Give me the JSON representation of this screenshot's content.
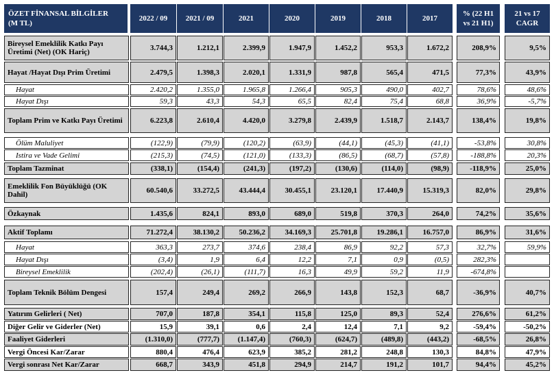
{
  "header": {
    "label_line1": "ÖZET FİNANSAL BİLGİLER",
    "label_line2": "(M TL)",
    "years": [
      "2022 / 09",
      "2021 / 09",
      "2021",
      "2020",
      "2019",
      "2018",
      "2017"
    ],
    "pct_line1": "% (22 H1",
    "pct_line2": "vs 21 H1)",
    "cagr_line1": "21 vs 17",
    "cagr_line2": "CAGR"
  },
  "rows": [
    {
      "label": "Bireysel Emeklilik Katkı Payı Üretimi (Net) (OK Hariç)",
      "values": [
        "3.744,3",
        "1.212,1",
        "2.399,9",
        "1.947,9",
        "1.452,2",
        "953,3",
        "1.672,2"
      ],
      "pct": "208,9%",
      "cagr": "9,5%"
    },
    {
      "label": "Hayat /Hayat Dışı Prim Üretimi",
      "values": [
        "2.479,5",
        "1.398,3",
        "2.020,1",
        "1.331,9",
        "987,8",
        "565,4",
        "471,5"
      ],
      "pct": "77,3%",
      "cagr": "43,9%"
    },
    {
      "label": "Hayat",
      "values": [
        "2.420,2",
        "1.355,0",
        "1.965,8",
        "1.266,4",
        "905,3",
        "490,0",
        "402,7"
      ],
      "pct": "78,6%",
      "cagr": "48,6%"
    },
    {
      "label": "Hayat Dışı",
      "values": [
        "59,3",
        "43,3",
        "54,3",
        "65,5",
        "82,4",
        "75,4",
        "68,8"
      ],
      "pct": "36,9%",
      "cagr": "-5,7%"
    },
    {
      "label": "Toplam Prim ve Katkı Payı Üretimi",
      "values": [
        "6.223,8",
        "2.610,4",
        "4.420,0",
        "3.279,8",
        "2.439,9",
        "1.518,7",
        "2.143,7"
      ],
      "pct": "138,4%",
      "cagr": "19,8%"
    },
    {
      "label": "Ölüm Maluliyet",
      "values": [
        "(122,9)",
        "(79,9)",
        "(120,2)",
        "(63,9)",
        "(44,1)",
        "(45,3)",
        "(41,1)"
      ],
      "pct": "-53,8%",
      "cagr": "30,8%"
    },
    {
      "label": "Istira ve  Vade Gelimi",
      "values": [
        "(215,3)",
        "(74,5)",
        "(121,0)",
        "(133,3)",
        "(86,5)",
        "(68,7)",
        "(57,8)"
      ],
      "pct": "-188,8%",
      "cagr": "20,3%"
    },
    {
      "label": "Toplam Tazminat",
      "values": [
        "(338,1)",
        "(154,4)",
        "(241,3)",
        "(197,2)",
        "(130,6)",
        "(114,0)",
        "(98,9)"
      ],
      "pct": "-118,9%",
      "cagr": "25,0%"
    },
    {
      "label": "Emeklilik Fon Büyüklüğü (OK Dahil)",
      "values": [
        "60.540,6",
        "33.272,5",
        "43.444,4",
        "30.455,1",
        "23.120,1",
        "17.440,9",
        "15.319,3"
      ],
      "pct": "82,0%",
      "cagr": "29,8%"
    },
    {
      "label": "Özkaynak",
      "values": [
        "1.435,6",
        "824,1",
        "893,0",
        "689,0",
        "519,8",
        "370,3",
        "264,0"
      ],
      "pct": "74,2%",
      "cagr": "35,6%"
    },
    {
      "label": "Aktif  Toplamı",
      "values": [
        "71.272,4",
        "38.130,2",
        "50.236,2",
        "34.169,3",
        "25.701,8",
        "19.286,1",
        "16.757,0"
      ],
      "pct": "86,9%",
      "cagr": "31,6%"
    },
    {
      "label": "Hayat",
      "values": [
        "363,3",
        "273,7",
        "374,6",
        "238,4",
        "86,9",
        "92,2",
        "57,3"
      ],
      "pct": "32,7%",
      "cagr": "59,9%"
    },
    {
      "label": "Hayat Dışı",
      "values": [
        "(3,4)",
        "1,9",
        "6,4",
        "12,2",
        "7,1",
        "0,9",
        "(0,5)"
      ],
      "pct": "282,3%",
      "cagr": ""
    },
    {
      "label": "Bireysel Emeklilik",
      "values": [
        "(202,4)",
        "(26,1)",
        "(111,7)",
        "16,3",
        "49,9",
        "59,2",
        "11,9"
      ],
      "pct": "-674,8%",
      "cagr": ""
    },
    {
      "label": "Toplam Teknik Bölüm Dengesi",
      "values": [
        "157,4",
        "249,4",
        "269,2",
        "266,9",
        "143,8",
        "152,3",
        "68,7"
      ],
      "pct": "-36,9%",
      "cagr": "40,7%"
    },
    {
      "label": "Yatırım Gelirleri ( Net)",
      "values": [
        "707,0",
        "187,8",
        "354,1",
        "115,8",
        "125,0",
        "89,3",
        "52,4"
      ],
      "pct": "276,6%",
      "cagr": "61,2%"
    },
    {
      "label": "Diğer Gelir ve Giderler (Net)",
      "values": [
        "15,9",
        "39,1",
        "0,6",
        "2,4",
        "12,4",
        "7,1",
        "9,2"
      ],
      "pct": "-59,4%",
      "cagr": "-50,2%"
    },
    {
      "label": "Faaliyet Giderleri",
      "values": [
        "(1.310,0)",
        "(777,7)",
        "(1.147,4)",
        "(760,3)",
        "(624,7)",
        "(489,8)",
        "(443,2)"
      ],
      "pct": "-68,5%",
      "cagr": "26,8%"
    },
    {
      "label": "Vergi Öncesi Kar/Zarar",
      "values": [
        "880,4",
        "476,4",
        "623,9",
        "385,2",
        "281,2",
        "248,8",
        "130,3"
      ],
      "pct": "84,8%",
      "cagr": "47,9%"
    },
    {
      "label": "Vergi sonrası Net Kar/Zarar",
      "values": [
        "668,7",
        "343,9",
        "451,8",
        "294,9",
        "214,7",
        "191,2",
        "101,7"
      ],
      "pct": "94,4%",
      "cagr": "45,2%"
    }
  ]
}
